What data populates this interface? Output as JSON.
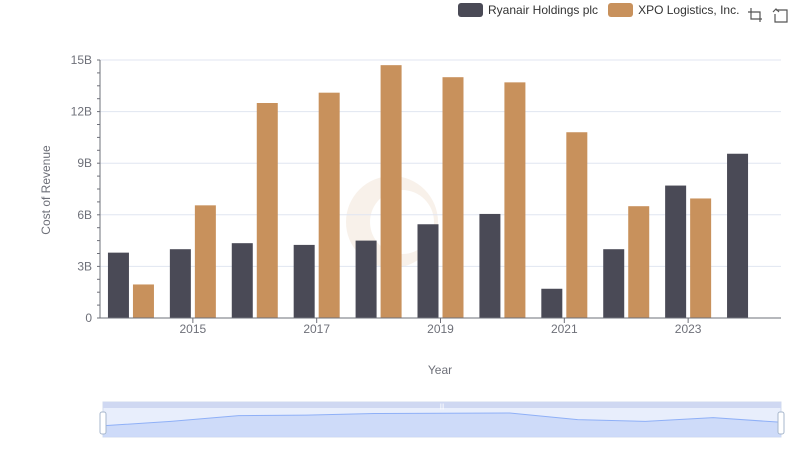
{
  "chart_data": {
    "type": "bar",
    "title": "",
    "xlabel": "Year",
    "ylabel": "Cost of Revenue",
    "categories": [
      "2014",
      "2015",
      "2016",
      "2017",
      "2018",
      "2019",
      "2020",
      "2021",
      "2022",
      "2023",
      "2024"
    ],
    "x_tick_labels": [
      "2015",
      "2017",
      "2019",
      "2021",
      "2023"
    ],
    "y_ticks": [
      0,
      3,
      6,
      9,
      12,
      15
    ],
    "y_tick_labels": [
      "0",
      "3B",
      "6B",
      "9B",
      "12B",
      "15B"
    ],
    "ylim": [
      0,
      15
    ],
    "unit": "billions",
    "series": [
      {
        "name": "Ryanair Holdings plc",
        "color": "#4a4a56",
        "values": [
          3.8,
          4.0,
          4.35,
          4.25,
          4.5,
          5.45,
          6.05,
          1.7,
          4.0,
          7.7,
          9.55
        ]
      },
      {
        "name": "XPO Logistics, Inc.",
        "color": "#c8915c",
        "values": [
          1.95,
          6.55,
          12.5,
          13.1,
          14.7,
          14.0,
          13.7,
          10.8,
          6.5,
          6.95,
          null
        ]
      }
    ],
    "legend_position": "top-right",
    "grid": true,
    "data_zoom": true
  },
  "toolbox": {
    "icons": [
      "zoom-icon",
      "zoom-reset-icon"
    ]
  }
}
